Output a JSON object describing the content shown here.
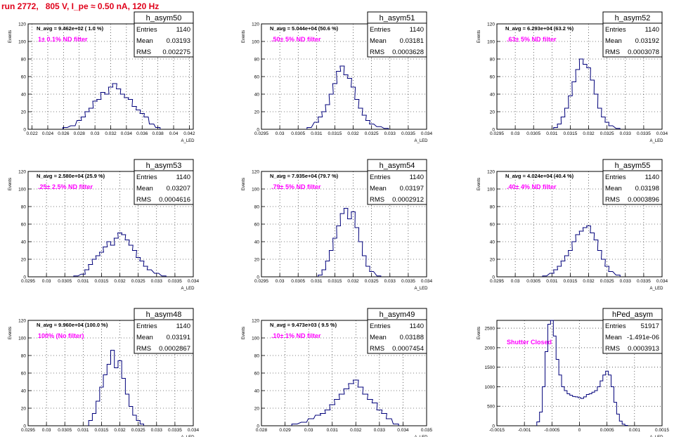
{
  "run_title": "run 2772,   805 V, I_pe ≈ 0.50 nA, 120 Hz",
  "colors": {
    "title": "#e0001a",
    "note": "#ff00ff",
    "hist": "#00007a",
    "grid": "#000000"
  },
  "chart_data": [
    {
      "type": "histogram",
      "name": "h_asym50",
      "nav": "N_avg = 9.462e+02 ( 1.0 %)",
      "note": "1± 0.1% ND filter",
      "stats": [
        [
          "Entries",
          "1140"
        ],
        [
          "Mean",
          "0.03193"
        ],
        [
          "RMS",
          "0.002275"
        ]
      ],
      "xlim": [
        0.0215,
        0.0425
      ],
      "xticks": [
        0.022,
        0.024,
        0.026,
        0.028,
        0.03,
        0.032,
        0.034,
        0.036,
        0.038,
        0.04,
        0.042
      ],
      "xticklabels": [
        "0.022",
        "0.024",
        "0.026",
        "0.028",
        "0.03",
        "0.032",
        "0.034",
        "0.036",
        "0.038",
        "0.04",
        "0.042"
      ],
      "ylim": [
        0,
        120
      ],
      "yticks": [
        0,
        20,
        40,
        60,
        80,
        100,
        120
      ],
      "yticklabels": [
        "0",
        "20",
        "40",
        "60",
        "80",
        "100",
        "120"
      ],
      "xlabel": "A_LED",
      "ylabel": "Events",
      "x": [
        0.0262,
        0.0272,
        0.028,
        0.0285,
        0.029,
        0.0295,
        0.03,
        0.0305,
        0.031,
        0.0315,
        0.032,
        0.0325,
        0.033,
        0.0335,
        0.034,
        0.0345,
        0.035,
        0.0355,
        0.036,
        0.0365,
        0.0372,
        0.038
      ],
      "values": [
        2,
        4,
        10,
        14,
        20,
        24,
        32,
        34,
        42,
        40,
        48,
        52,
        46,
        40,
        36,
        34,
        26,
        22,
        18,
        14,
        6,
        2
      ]
    },
    {
      "type": "histogram",
      "name": "h_asym51",
      "nav": "N_avg = 5.044e+04 (50.6 %)",
      "note": ".50± 5% ND filter",
      "stats": [
        [
          "Entries",
          "1140"
        ],
        [
          "Mean",
          "0.03181"
        ],
        [
          "RMS",
          "0.0003628"
        ]
      ],
      "xlim": [
        0.0295,
        0.034
      ],
      "xticks": [
        0.0295,
        0.03,
        0.0305,
        0.031,
        0.0315,
        0.032,
        0.0325,
        0.033,
        0.0335,
        0.034
      ],
      "xticklabels": [
        "0.0295",
        "0.03",
        "0.0305",
        "0.031",
        "0.0315",
        "0.032",
        "0.0325",
        "0.033",
        "0.0335",
        "0.034"
      ],
      "ylim": [
        0,
        120
      ],
      "yticks": [
        0,
        20,
        40,
        60,
        80,
        100,
        120
      ],
      "yticklabels": [
        "0",
        "20",
        "40",
        "60",
        "80",
        "100",
        "120"
      ],
      "xlabel": "A_LED",
      "ylabel": "Events",
      "x": [
        0.0308,
        0.031,
        0.0311,
        0.0312,
        0.0313,
        0.0314,
        0.0315,
        0.0316,
        0.0317,
        0.0318,
        0.0319,
        0.032,
        0.0321,
        0.0322,
        0.0323,
        0.0324,
        0.0325,
        0.0327,
        0.0329
      ],
      "values": [
        2,
        8,
        14,
        20,
        28,
        40,
        52,
        66,
        72,
        62,
        58,
        48,
        34,
        24,
        16,
        10,
        6,
        3,
        1
      ]
    },
    {
      "type": "histogram",
      "name": "h_asym52",
      "nav": "N_avg = 6.293e+04 (63.2 %)",
      "note": ".63± 5% ND filter",
      "stats": [
        [
          "Entries",
          "1140"
        ],
        [
          "Mean",
          "0.03192"
        ],
        [
          "RMS",
          "0.0003078"
        ]
      ],
      "xlim": [
        0.0295,
        0.034
      ],
      "xticks": [
        0.0295,
        0.03,
        0.0305,
        0.031,
        0.0315,
        0.032,
        0.0325,
        0.033,
        0.0335,
        0.034
      ],
      "xticklabels": [
        "0.0295",
        "0.03",
        "0.0305",
        "0.031",
        "0.0315",
        "0.032",
        "0.0325",
        "0.033",
        "0.0335",
        "0.034"
      ],
      "ylim": [
        0,
        120
      ],
      "yticks": [
        0,
        20,
        40,
        60,
        80,
        100,
        120
      ],
      "yticklabels": [
        "0",
        "20",
        "40",
        "60",
        "80",
        "100",
        "120"
      ],
      "xlabel": "A_LED",
      "ylabel": "Events",
      "x": [
        0.0311,
        0.0312,
        0.0313,
        0.0314,
        0.0315,
        0.0316,
        0.0317,
        0.0318,
        0.0319,
        0.032,
        0.0321,
        0.0322,
        0.0323,
        0.0324,
        0.0325,
        0.0326,
        0.0328
      ],
      "values": [
        2,
        6,
        14,
        24,
        38,
        54,
        68,
        80,
        74,
        70,
        56,
        40,
        24,
        14,
        8,
        4,
        1
      ]
    },
    {
      "type": "histogram",
      "name": "h_asym53",
      "nav": "N_avg = 2.580e+04 (25.9 %)",
      "note": ".25± 2.5% ND filter",
      "stats": [
        [
          "Entries",
          "1140"
        ],
        [
          "Mean",
          "0.03207"
        ],
        [
          "RMS",
          "0.0004616"
        ]
      ],
      "xlim": [
        0.0295,
        0.034
      ],
      "xticks": [
        0.0295,
        0.03,
        0.0305,
        0.031,
        0.0315,
        0.032,
        0.0325,
        0.033,
        0.0335,
        0.034
      ],
      "xticklabels": [
        "0.0295",
        "0.03",
        "0.0305",
        "0.031",
        "0.0315",
        "0.032",
        "0.0325",
        "0.033",
        "0.0335",
        "0.034"
      ],
      "ylim": [
        0,
        120
      ],
      "yticks": [
        0,
        20,
        40,
        60,
        80,
        100,
        120
      ],
      "yticklabels": [
        "0",
        "20",
        "40",
        "60",
        "80",
        "100",
        "120"
      ],
      "xlabel": "A_LED",
      "ylabel": "Events",
      "x": [
        0.0308,
        0.031,
        0.0311,
        0.0312,
        0.0313,
        0.0314,
        0.0315,
        0.0316,
        0.0317,
        0.0318,
        0.0319,
        0.032,
        0.0321,
        0.0322,
        0.0323,
        0.0324,
        0.0325,
        0.0326,
        0.0327,
        0.0328,
        0.033,
        0.0332
      ],
      "values": [
        1,
        3,
        8,
        14,
        20,
        24,
        28,
        34,
        40,
        36,
        44,
        50,
        48,
        42,
        36,
        30,
        22,
        18,
        12,
        8,
        4,
        1
      ]
    },
    {
      "type": "histogram",
      "name": "h_asym54",
      "nav": "N_avg = 7.935e+04 (79.7 %)",
      "note": ".79± 5% ND filter",
      "stats": [
        [
          "Entries",
          "1140"
        ],
        [
          "Mean",
          "0.03197"
        ],
        [
          "RMS",
          "0.0002912"
        ]
      ],
      "xlim": [
        0.0295,
        0.034
      ],
      "xticks": [
        0.0295,
        0.03,
        0.0305,
        0.031,
        0.0315,
        0.032,
        0.0325,
        0.033,
        0.0335,
        0.034
      ],
      "xticklabels": [
        "0.0295",
        "0.03",
        "0.0305",
        "0.031",
        "0.0315",
        "0.032",
        "0.0325",
        "0.033",
        "0.0335",
        "0.034"
      ],
      "ylim": [
        0,
        120
      ],
      "yticks": [
        0,
        20,
        40,
        60,
        80,
        100,
        120
      ],
      "yticklabels": [
        "0",
        "20",
        "40",
        "60",
        "80",
        "100",
        "120"
      ],
      "xlabel": "A_LED",
      "ylabel": "Events",
      "x": [
        0.0311,
        0.0312,
        0.0313,
        0.0314,
        0.0315,
        0.0316,
        0.0317,
        0.0318,
        0.0319,
        0.032,
        0.0321,
        0.0322,
        0.0323,
        0.0324,
        0.0325,
        0.0327
      ],
      "values": [
        2,
        8,
        18,
        30,
        44,
        58,
        72,
        78,
        66,
        74,
        56,
        40,
        24,
        12,
        6,
        1
      ]
    },
    {
      "type": "histogram",
      "name": "h_asym55",
      "nav": "N_avg = 4.024e+04 (40.4 %)",
      "note": ".40± 4% ND filter",
      "stats": [
        [
          "Entries",
          "1140"
        ],
        [
          "Mean",
          "0.03198"
        ],
        [
          "RMS",
          "0.0003896"
        ]
      ],
      "xlim": [
        0.0295,
        0.034
      ],
      "xticks": [
        0.0295,
        0.03,
        0.0305,
        0.031,
        0.0315,
        0.032,
        0.0325,
        0.033,
        0.0335,
        0.034
      ],
      "xticklabels": [
        "0.0295",
        "0.03",
        "0.0305",
        "0.031",
        "0.0315",
        "0.032",
        "0.0325",
        "0.033",
        "0.0335",
        "0.034"
      ],
      "ylim": [
        0,
        120
      ],
      "yticks": [
        0,
        20,
        40,
        60,
        80,
        100,
        120
      ],
      "yticklabels": [
        "0",
        "20",
        "40",
        "60",
        "80",
        "100",
        "120"
      ],
      "xlabel": "A_LED",
      "ylabel": "Events",
      "x": [
        0.0308,
        0.031,
        0.0311,
        0.0312,
        0.0313,
        0.0314,
        0.0315,
        0.0316,
        0.0317,
        0.0318,
        0.0319,
        0.032,
        0.0321,
        0.0322,
        0.0323,
        0.0324,
        0.0325,
        0.0326,
        0.0328
      ],
      "values": [
        1,
        4,
        8,
        12,
        18,
        24,
        30,
        40,
        48,
        52,
        56,
        58,
        50,
        42,
        30,
        20,
        12,
        6,
        2
      ]
    },
    {
      "type": "histogram",
      "name": "h_asym48",
      "nav": "N_avg = 9.960e+04 (100.0 %)",
      "note": "100% (No filter)",
      "stats": [
        [
          "Entries",
          "1140"
        ],
        [
          "Mean",
          "0.03191"
        ],
        [
          "RMS",
          "0.0002867"
        ]
      ],
      "xlim": [
        0.0295,
        0.034
      ],
      "xticks": [
        0.0295,
        0.03,
        0.0305,
        0.031,
        0.0315,
        0.032,
        0.0325,
        0.033,
        0.0335,
        0.034
      ],
      "xticklabels": [
        "0.0295",
        "0.03",
        "0.0305",
        "0.031",
        "0.0315",
        "0.032",
        "0.0325",
        "0.033",
        "0.0335",
        "0.034"
      ],
      "ylim": [
        0,
        120
      ],
      "yticks": [
        0,
        20,
        40,
        60,
        80,
        100,
        120
      ],
      "yticklabels": [
        "0",
        "20",
        "40",
        "60",
        "80",
        "100",
        "120"
      ],
      "xlabel": "A_LED",
      "ylabel": "Events",
      "x": [
        0.0312,
        0.0313,
        0.0314,
        0.0315,
        0.0316,
        0.0317,
        0.0318,
        0.0319,
        0.032,
        0.0321,
        0.0322,
        0.0323,
        0.0324,
        0.0325,
        0.0326
      ],
      "values": [
        6,
        14,
        28,
        44,
        58,
        70,
        86,
        66,
        74,
        54,
        36,
        22,
        12,
        6,
        2
      ]
    },
    {
      "type": "histogram",
      "name": "h_asym49",
      "nav": "N_avg = 9.473e+03 ( 9.5 %)",
      "note": ".10± 1% ND filter",
      "stats": [
        [
          "Entries",
          "1140"
        ],
        [
          "Mean",
          "0.03188"
        ],
        [
          "RMS",
          "0.0007454"
        ]
      ],
      "xlim": [
        0.028,
        0.035
      ],
      "xticks": [
        0.028,
        0.029,
        0.03,
        0.031,
        0.032,
        0.033,
        0.034,
        0.035
      ],
      "xticklabels": [
        "0.028",
        "0.029",
        "0.03",
        "0.031",
        "0.032",
        "0.033",
        "0.034",
        "0.035"
      ],
      "ylim": [
        0,
        120
      ],
      "yticks": [
        0,
        20,
        40,
        60,
        80,
        100,
        120
      ],
      "yticklabels": [
        "0",
        "20",
        "40",
        "60",
        "80",
        "100",
        "120"
      ],
      "xlabel": "A_LED",
      "ylabel": "Events",
      "x": [
        0.0294,
        0.0298,
        0.0301,
        0.0304,
        0.0306,
        0.0308,
        0.031,
        0.0312,
        0.0314,
        0.0316,
        0.0318,
        0.032,
        0.0322,
        0.0324,
        0.0326,
        0.0328,
        0.033,
        0.0332,
        0.0334,
        0.0337
      ],
      "values": [
        2,
        4,
        8,
        12,
        14,
        18,
        24,
        30,
        36,
        42,
        48,
        52,
        44,
        36,
        30,
        26,
        18,
        14,
        8,
        2
      ]
    },
    {
      "type": "histogram",
      "name": "hPed_asym",
      "nav": "",
      "note": "Shutter Closed",
      "stats": [
        [
          "Entries",
          "51917"
        ],
        [
          "Mean",
          "-1.491e-06"
        ],
        [
          "RMS",
          "0.0003913"
        ]
      ],
      "xlim": [
        -0.0015,
        0.0015
      ],
      "xticks": [
        -0.0015,
        -0.001,
        -0.0005,
        0,
        0.0005,
        0.001,
        0.0015
      ],
      "xticklabels": [
        "-0.0015",
        "-0.001",
        "-0.0005",
        "0",
        "0.0005",
        "0.001",
        "0.0015"
      ],
      "ylim": [
        0,
        2700
      ],
      "yticks": [
        0,
        500,
        1000,
        1500,
        2000,
        2500
      ],
      "yticklabels": [
        "0",
        "500",
        "1000",
        "1500",
        "2000",
        "2500"
      ],
      "xlabel": "A_LED",
      "ylabel": "Events",
      "x": [
        -0.00075,
        -0.0007,
        -0.00065,
        -0.0006,
        -0.00055,
        -0.0005,
        -0.00045,
        -0.0004,
        -0.00035,
        -0.0003,
        -0.00025,
        -0.0002,
        -0.00015,
        -0.0001,
        -5e-05,
        0,
        5e-05,
        0.0001,
        0.00015,
        0.0002,
        0.00025,
        0.0003,
        0.00035,
        0.0004,
        0.00045,
        0.0005,
        0.00055,
        0.0006,
        0.00065,
        0.0007,
        0.00075,
        0.0008,
        0.00085
      ],
      "values": [
        100,
        350,
        1000,
        1900,
        2600,
        2700,
        2300,
        1700,
        1300,
        1000,
        900,
        820,
        780,
        750,
        740,
        720,
        700,
        740,
        800,
        820,
        860,
        900,
        1000,
        1150,
        1300,
        1400,
        1300,
        1000,
        600,
        300,
        120,
        40,
        10
      ]
    }
  ]
}
